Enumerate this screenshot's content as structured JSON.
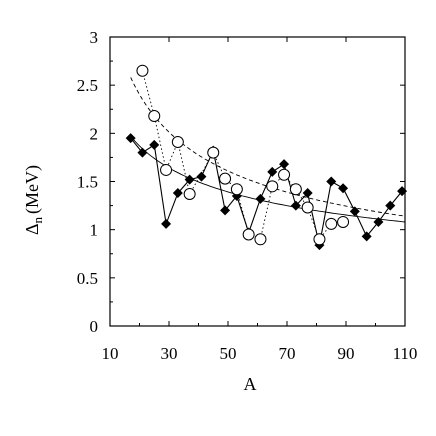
{
  "chart_data": {
    "type": "scatter",
    "title": "",
    "xlabel": "A",
    "ylabel": {
      "symbol": "Δ",
      "subscript": "n",
      "unit": "(MeV)"
    },
    "xlim": [
      10,
      110
    ],
    "ylim": [
      0,
      3
    ],
    "xticks": [
      "10",
      "30",
      "50",
      "70",
      "90",
      "110"
    ],
    "yticks": [
      "0",
      "0.5",
      "1",
      "1.5",
      "2",
      "2.5",
      "3"
    ],
    "xtick_values": [
      10,
      30,
      50,
      70,
      90,
      110
    ],
    "ytick_values": [
      0,
      0.5,
      1,
      1.5,
      2,
      2.5,
      3
    ],
    "grid": false,
    "series": [
      {
        "marker": "filled-diamond",
        "line": "solid",
        "color": "#000000",
        "points": [
          [
            17,
            1.95
          ],
          [
            21,
            1.8
          ],
          [
            25,
            1.88
          ],
          [
            29,
            1.06
          ],
          [
            33,
            1.38
          ],
          [
            37,
            1.52
          ],
          [
            41,
            1.55
          ],
          [
            45,
            1.82
          ],
          [
            49,
            1.2
          ],
          [
            53,
            1.35
          ],
          [
            57,
            0.97
          ],
          [
            61,
            1.32
          ],
          [
            65,
            1.6
          ],
          [
            69,
            1.68
          ],
          [
            73,
            1.25
          ],
          [
            77,
            1.38
          ],
          [
            81,
            0.84
          ],
          [
            85,
            1.5
          ],
          [
            89,
            1.43
          ],
          [
            93,
            1.19
          ],
          [
            97,
            0.93
          ],
          [
            101,
            1.08
          ],
          [
            105,
            1.25
          ],
          [
            109,
            1.4
          ]
        ]
      },
      {
        "marker": "open-circle",
        "line": "dotted",
        "color": "#000000",
        "points": [
          [
            21,
            2.65
          ],
          [
            25,
            2.18
          ],
          [
            29,
            1.62
          ],
          [
            33,
            1.91
          ],
          [
            37,
            1.37
          ],
          [
            45,
            1.8
          ],
          [
            49,
            1.53
          ],
          [
            53,
            1.42
          ],
          [
            57,
            0.95
          ],
          [
            61,
            0.9
          ],
          [
            65,
            1.45
          ],
          [
            69,
            1.57
          ],
          [
            73,
            1.42
          ],
          [
            77,
            1.23
          ],
          [
            81,
            0.9
          ],
          [
            85,
            1.06
          ],
          [
            89,
            1.08
          ]
        ]
      }
    ],
    "fits": [
      {
        "line": "solid",
        "start": [
          17,
          1.97
        ],
        "end": [
          110,
          1.08
        ]
      },
      {
        "line": "dashed",
        "start": [
          17,
          2.58
        ],
        "end": [
          110,
          1.14
        ]
      }
    ]
  }
}
